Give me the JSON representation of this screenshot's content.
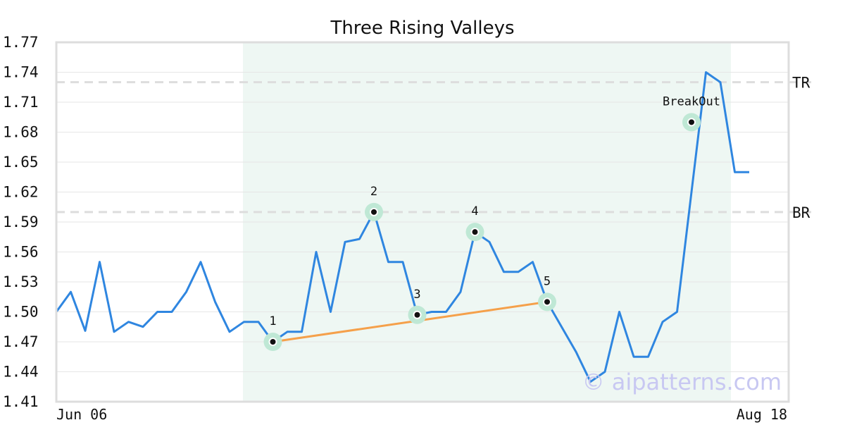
{
  "chart_data": {
    "type": "line",
    "title": "Three Rising Valleys",
    "xlabel": "",
    "ylabel": "",
    "ylim": [
      1.41,
      1.77
    ],
    "yticks": [
      1.41,
      1.44,
      1.47,
      1.5,
      1.53,
      1.56,
      1.59,
      1.62,
      1.65,
      1.68,
      1.71,
      1.74,
      1.77
    ],
    "ytick_labels": [
      "1.41",
      "1.44",
      "1.47",
      "1.50",
      "1.53",
      "1.56",
      "1.59",
      "1.62",
      "1.65",
      "1.68",
      "1.71",
      "1.74",
      "1.77"
    ],
    "x_tick_labels": [
      "Jun 06",
      "Aug 18"
    ],
    "grid": true,
    "series": [
      {
        "color": "#2f86e0",
        "values": [
          1.5,
          1.52,
          1.481,
          1.55,
          1.48,
          1.49,
          1.485,
          1.5,
          1.5,
          1.52,
          1.55,
          1.51,
          1.48,
          1.49,
          1.49,
          1.47,
          1.48,
          1.48,
          1.56,
          1.5,
          1.57,
          1.573,
          1.6,
          1.55,
          1.55,
          1.497,
          1.5,
          1.5,
          1.52,
          1.58,
          1.57,
          1.54,
          1.54,
          1.55,
          1.51,
          1.485,
          1.46,
          1.43,
          1.44,
          1.5,
          1.455,
          1.455,
          1.49,
          1.5,
          1.62,
          1.74,
          1.73,
          1.64,
          1.64
        ]
      }
    ],
    "pattern_zone": {
      "start_index": 13,
      "end_index": 47
    },
    "levels": [
      {
        "label": "TR",
        "value": 1.73
      },
      {
        "label": "BR",
        "value": 1.6
      }
    ],
    "trendline": {
      "color": "#f5a04a",
      "points": [
        {
          "index": 15,
          "value": 1.47
        },
        {
          "index": 34,
          "value": 1.51
        }
      ]
    },
    "markers": [
      {
        "label": "1",
        "index": 15,
        "value": 1.47
      },
      {
        "label": "2",
        "index": 22,
        "value": 1.6
      },
      {
        "label": "3",
        "index": 25,
        "value": 1.497
      },
      {
        "label": "4",
        "index": 29,
        "value": 1.58
      },
      {
        "label": "5",
        "index": 34,
        "value": 1.51
      },
      {
        "label": "BreakOut",
        "index": 44,
        "value": 1.69
      }
    ],
    "watermark": "© aipatterns.com",
    "colors": {
      "line": "#2f86e0",
      "zone": "#eef7f3",
      "marker_halo": "#bfe8d5",
      "trendline": "#f5a04a",
      "level_line": "#dddddd"
    }
  }
}
